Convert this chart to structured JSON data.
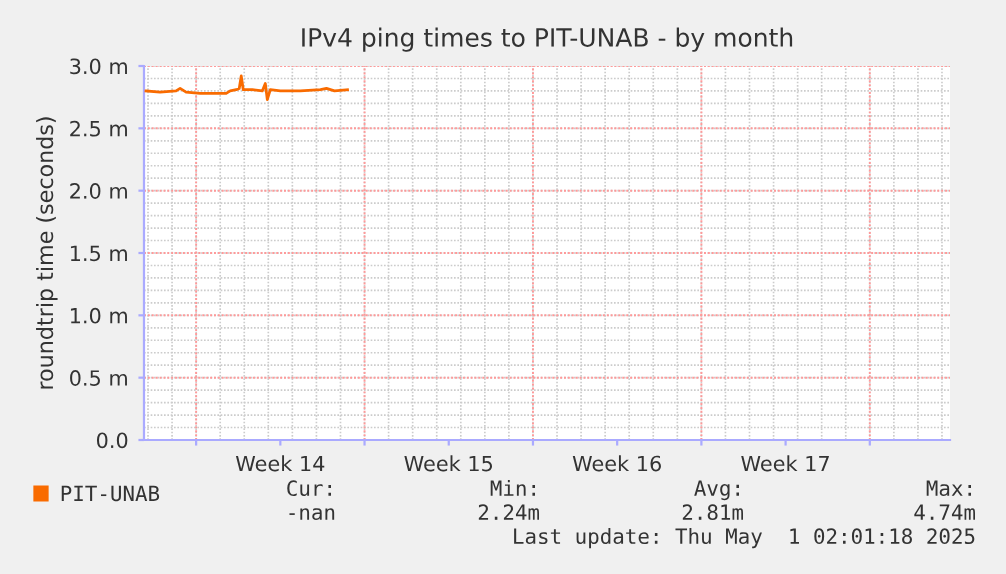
{
  "chart_data": {
    "type": "line",
    "title": "IPv4 ping times to PIT-UNAB - by month",
    "ylabel": "roundtrip time (seconds)",
    "series": [
      {
        "name": "PIT-UNAB",
        "color": "#f96b00",
        "x": [
          "2025-03-28T22:00",
          "2025-03-29T12:00",
          "2025-03-30T04:00",
          "2025-03-30T08:00",
          "2025-03-30T14:00",
          "2025-03-31T04:00",
          "2025-03-31T20:00",
          "2025-04-01T06:00",
          "2025-04-01T10:00",
          "2025-04-01T16:00",
          "2025-04-01T19:00",
          "2025-04-01T21:00",
          "2025-04-01T23:00",
          "2025-04-02T08:00",
          "2025-04-02T18:00",
          "2025-04-02T21:00",
          "2025-04-02T23:00",
          "2025-04-03T02:00",
          "2025-04-03T12:00",
          "2025-04-04T08:00",
          "2025-04-05T04:00",
          "2025-04-05T10:00",
          "2025-04-05T18:00",
          "2025-04-06T07:00"
        ],
        "values": [
          2.8,
          2.79,
          2.8,
          2.82,
          2.79,
          2.78,
          2.78,
          2.78,
          2.8,
          2.81,
          2.82,
          2.92,
          2.81,
          2.81,
          2.8,
          2.86,
          2.73,
          2.81,
          2.8,
          2.8,
          2.81,
          2.82,
          2.8,
          2.81
        ]
      }
    ],
    "xlim": [
      "2025-03-28T20:00",
      "2025-05-01T08:00"
    ],
    "xticks": [
      {
        "value": "2025-03-31",
        "label": null
      },
      {
        "value": "2025-04-03T12:00",
        "label": "Week 14"
      },
      {
        "value": "2025-04-07",
        "label": null
      },
      {
        "value": "2025-04-10T12:00",
        "label": "Week 15"
      },
      {
        "value": "2025-04-14",
        "label": null
      },
      {
        "value": "2025-04-17T12:00",
        "label": "Week 16"
      },
      {
        "value": "2025-04-21",
        "label": null
      },
      {
        "value": "2025-04-24T12:00",
        "label": "Week 17"
      },
      {
        "value": "2025-04-28",
        "label": null
      }
    ],
    "ylim": [
      0,
      3
    ],
    "yticks": [
      {
        "value": 0,
        "label": "0.0"
      },
      {
        "value": 0.5,
        "label": "0.5 m"
      },
      {
        "value": 1,
        "label": "1.0 m"
      },
      {
        "value": 1.5,
        "label": "1.5 m"
      },
      {
        "value": 2,
        "label": "2.0 m"
      },
      {
        "value": 2.5,
        "label": "2.5 m"
      },
      {
        "value": 3,
        "label": "3.0 m"
      }
    ],
    "grid": true,
    "legend": "bottom",
    "marker": "none",
    "line_style": "solid",
    "annotations": [
      "Cur:",
      "Min:",
      "Avg:",
      "Max:",
      "-nan",
      "2.24m",
      "2.81m",
      "4.74m",
      "Last update: Thu May  1 02:01:18 2025"
    ]
  }
}
